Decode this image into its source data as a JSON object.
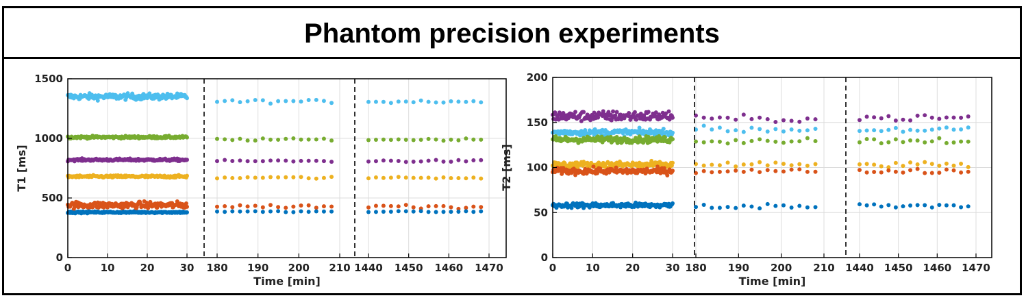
{
  "page": {
    "title": "Phantom precision experiments"
  },
  "colors": {
    "blue": "#0072BD",
    "orange": "#D95319",
    "yellow": "#EDB120",
    "purple": "#7E2F8E",
    "green": "#77AC30",
    "cyan": "#4DBEEE"
  },
  "chart_data": [
    {
      "type": "scatter",
      "title": "",
      "ylabel": "T1 [ms]",
      "xlabel": "Time [min]",
      "ylim": [
        0,
        1500
      ],
      "yticks": [
        0,
        500,
        1000,
        1500
      ],
      "grid": true,
      "segments": [
        {
          "range": [
            0,
            30
          ],
          "ticks": [
            0,
            10,
            20,
            30
          ],
          "dense": true
        },
        {
          "range": [
            175,
            212
          ],
          "ticks": [
            180,
            190,
            200,
            210
          ],
          "dense": false
        },
        {
          "range": [
            1435,
            1472
          ],
          "ticks": [
            1440,
            1450,
            1460,
            1470
          ],
          "dense": false
        }
      ],
      "series": [
        {
          "name": "cyan",
          "color": "#4DBEEE",
          "values": [
            1350,
            1310,
            1310
          ],
          "spread": [
            18,
            12,
            12
          ]
        },
        {
          "name": "green",
          "color": "#77AC30",
          "values": [
            1010,
            990,
            990
          ],
          "spread": [
            7,
            8,
            8
          ]
        },
        {
          "name": "purple",
          "color": "#7E2F8E",
          "values": [
            820,
            810,
            810
          ],
          "spread": [
            7,
            7,
            7
          ]
        },
        {
          "name": "yellow",
          "color": "#EDB120",
          "values": [
            680,
            670,
            670
          ],
          "spread": [
            7,
            7,
            7
          ]
        },
        {
          "name": "orange",
          "color": "#D95319",
          "values": [
            440,
            430,
            430
          ],
          "spread": [
            20,
            12,
            18
          ]
        },
        {
          "name": "blue",
          "color": "#0072BD",
          "values": [
            380,
            385,
            385
          ],
          "spread": [
            5,
            5,
            5
          ]
        }
      ]
    },
    {
      "type": "scatter",
      "title": "",
      "ylabel": "T2 [ms]",
      "xlabel": "Time [min]",
      "ylim": [
        0,
        200
      ],
      "yticks": [
        0,
        50,
        100,
        150,
        200
      ],
      "grid": true,
      "segments": [
        {
          "range": [
            0,
            30
          ],
          "ticks": [
            0,
            10,
            20,
            30
          ],
          "dense": true
        },
        {
          "range": [
            175,
            212
          ],
          "ticks": [
            180,
            190,
            200,
            210
          ],
          "dense": false
        },
        {
          "range": [
            1435,
            1472
          ],
          "ticks": [
            1440,
            1450,
            1460,
            1470
          ],
          "dense": false
        }
      ],
      "series": [
        {
          "name": "purple",
          "color": "#7E2F8E",
          "values": [
            157,
            154,
            155
          ],
          "spread": [
            4,
            3,
            3
          ]
        },
        {
          "name": "cyan",
          "color": "#4DBEEE",
          "values": [
            139,
            142,
            142
          ],
          "spread": [
            2.5,
            3,
            3
          ]
        },
        {
          "name": "green",
          "color": "#77AC30",
          "values": [
            131,
            130,
            130
          ],
          "spread": [
            2.5,
            3,
            3
          ]
        },
        {
          "name": "yellow",
          "color": "#EDB120",
          "values": [
            103,
            103,
            103
          ],
          "spread": [
            2.5,
            2.5,
            2.5
          ]
        },
        {
          "name": "orange",
          "color": "#D95319",
          "values": [
            96,
            96,
            96
          ],
          "spread": [
            2.5,
            2,
            2
          ]
        },
        {
          "name": "blue",
          "color": "#0072BD",
          "values": [
            58,
            57,
            58
          ],
          "spread": [
            2,
            2,
            2
          ]
        }
      ]
    }
  ]
}
